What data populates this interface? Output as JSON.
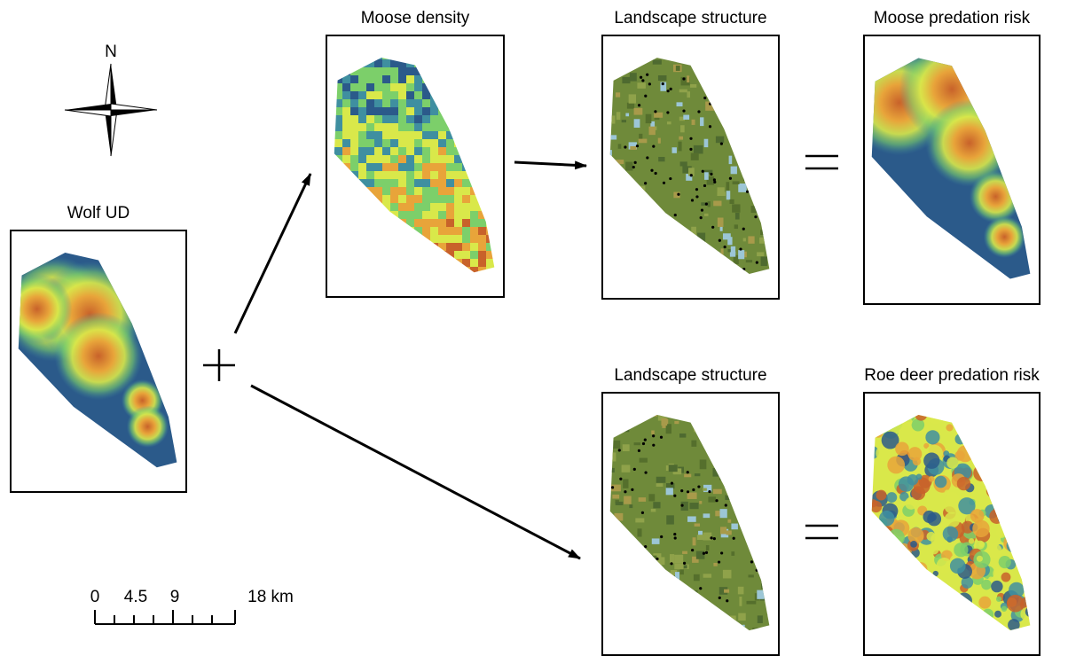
{
  "compass": {
    "label": "N"
  },
  "panels": [
    {
      "title": "Wolf UD"
    },
    {
      "title": "Moose density"
    },
    {
      "title": "Landscape structure"
    },
    {
      "title": "Moose predation risk"
    },
    {
      "title": "Landscape structure"
    },
    {
      "title": "Roe deer predation risk"
    }
  ],
  "scale_bar": {
    "labels": [
      "0",
      "4.5",
      "9",
      "18 km"
    ]
  }
}
